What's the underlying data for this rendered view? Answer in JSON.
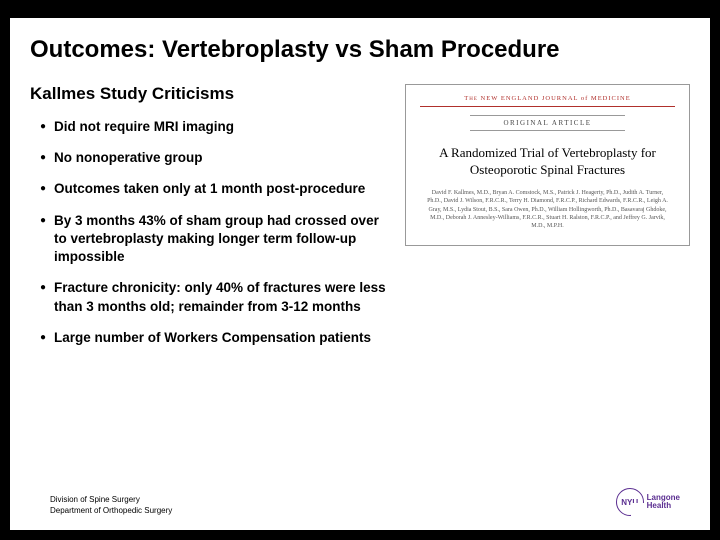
{
  "title": "Outcomes: Vertebroplasty vs Sham Procedure",
  "subtitle": "Kallmes Study Criticisms",
  "bullets": [
    "Did not require MRI imaging",
    "No nonoperative group",
    "Outcomes taken only at 1 month post-procedure",
    " By 3 months 43% of sham group had crossed over to vertebroplasty making longer term follow-up impossible",
    "Fracture chronicity: only 40% of fractures were less than 3 months old; remainder from 3-12 months",
    "Large number of Workers Compensation patients"
  ],
  "article": {
    "journal_prefix": "The",
    "journal_name": "NEW ENGLAND JOURNAL of MEDICINE",
    "label": "ORIGINAL ARTICLE",
    "title": "A Randomized Trial of Vertebroplasty for Osteoporotic Spinal Fractures",
    "authors": "David F. Kallmes, M.D., Bryan A. Comstock, M.S., Patrick J. Heagerty, Ph.D., Judith A. Turner, Ph.D., David J. Wilson, F.R.C.R., Terry H. Diamond, F.R.C.P., Richard Edwards, F.R.C.R., Leigh A. Gray, M.S., Lydia Stout, B.S., Sara Owen, Ph.D., William Hollingworth, Ph.D., Basavaraj Ghdoke, M.D., Deborah J. Annesley-Williams, F.R.C.R., Stuart H. Ralston, F.R.C.P., and Jeffrey G. Jarvik, M.D., M.P.H."
  },
  "footer": {
    "line1": "Division of Spine Surgery",
    "line2": "Department of Orthopedic Surgery",
    "logo_badge": "NYU",
    "logo_text1": "Langone",
    "logo_text2": "Health"
  }
}
